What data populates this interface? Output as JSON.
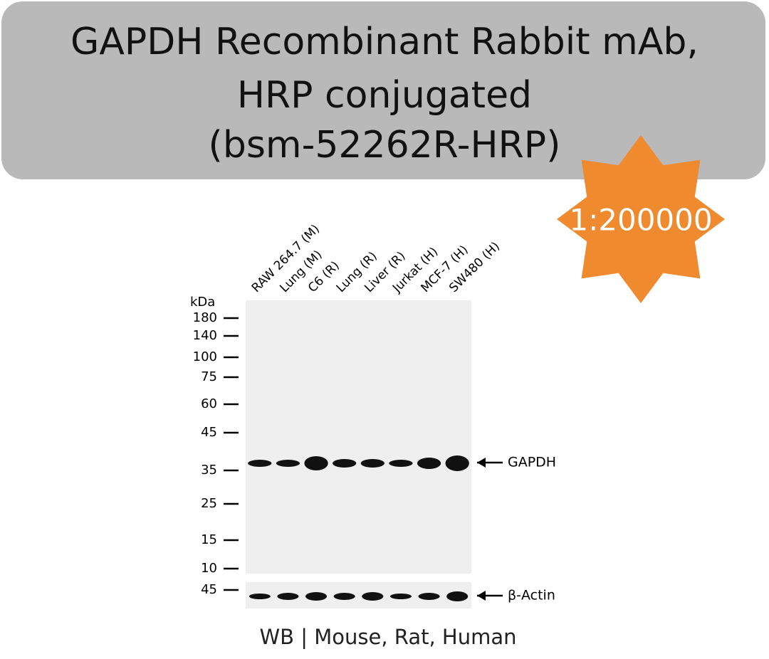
{
  "header": {
    "title_lines": [
      "GAPDH Recombinant Rabbit mAb,",
      "HRP conjugated",
      "(bsm-52262R-HRP)"
    ]
  },
  "badge": {
    "dilution": "1:200000"
  },
  "blot": {
    "lanes": [
      "RAW 264.7 (M)",
      "Lung (M)",
      "C6 (R)",
      "Lung (R)",
      "Liver (R)",
      "Jurkat (H)",
      "MCF-7 (H)",
      "SW480 (H)"
    ],
    "unit": "kDa",
    "markers": [
      180,
      140,
      100,
      75,
      60,
      45,
      35,
      25,
      15,
      10
    ],
    "loading_marker": 45,
    "target_label": "GAPDH",
    "loading_label": "β-Actin"
  },
  "footer": {
    "caption": "WB | Mouse, Rat, Human"
  }
}
